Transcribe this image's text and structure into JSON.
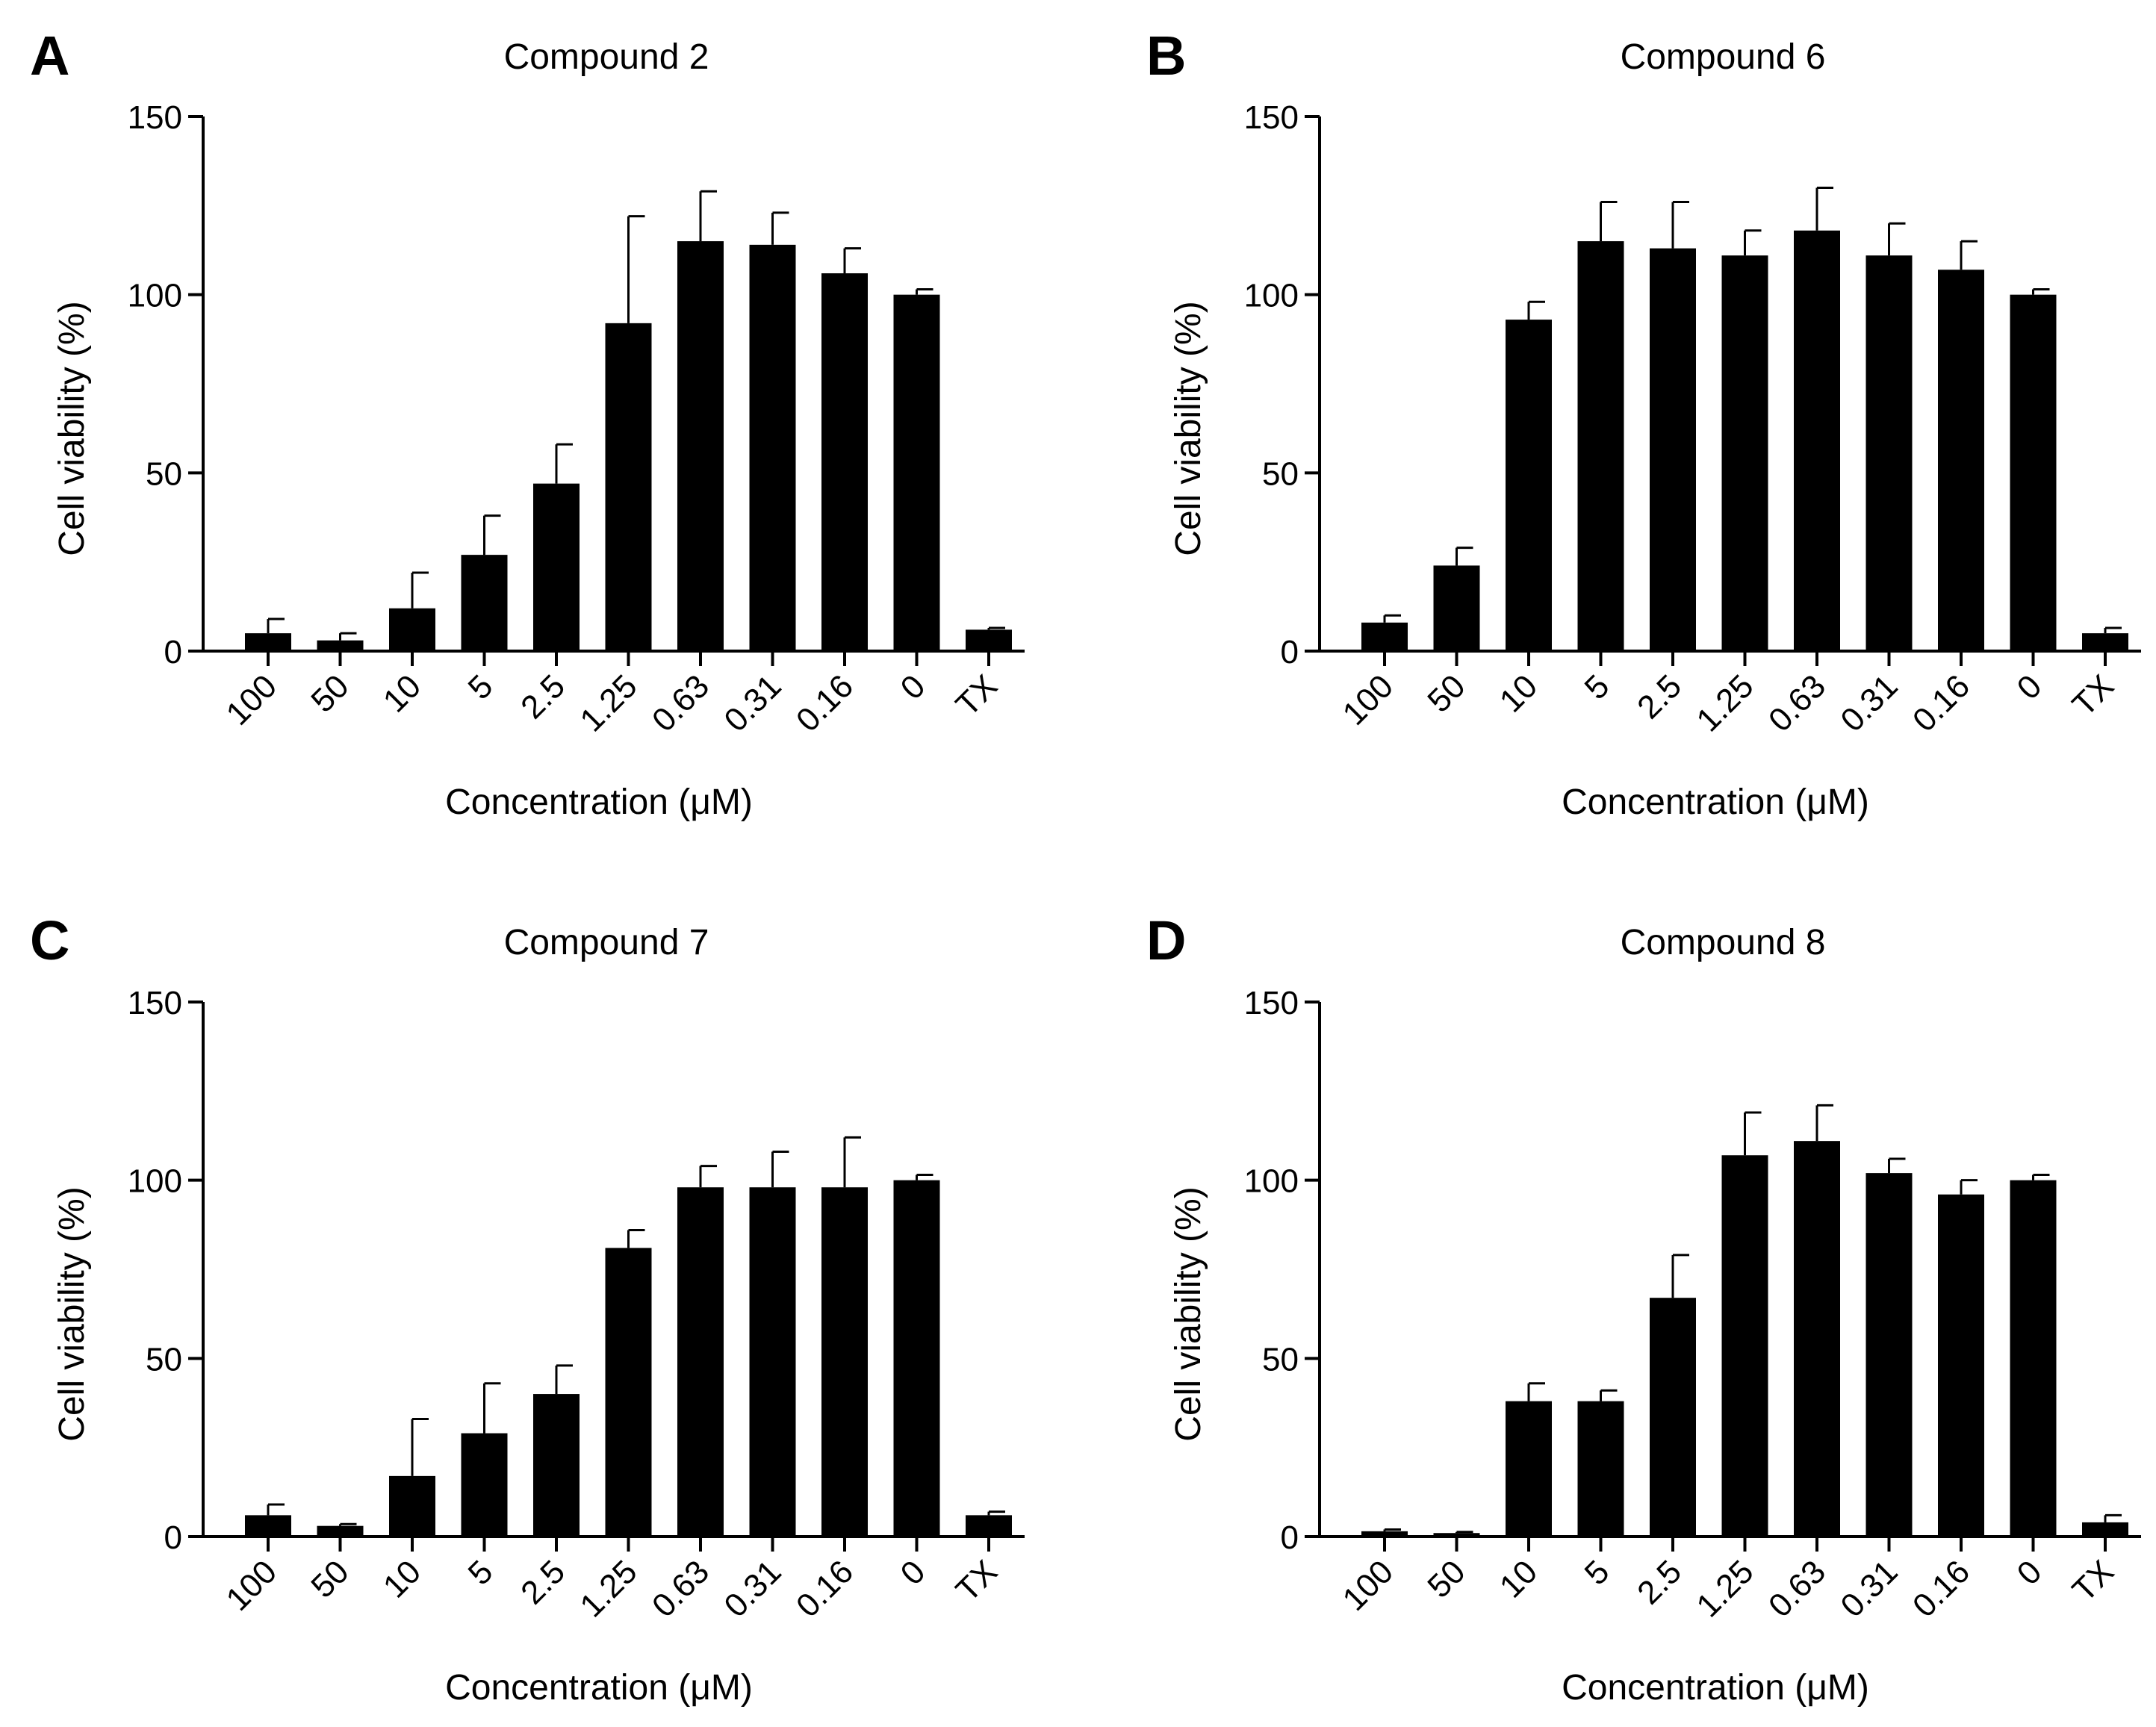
{
  "figure": {
    "bar_color": "#000000",
    "axis_color": "#000000",
    "background": "#ffffff"
  },
  "chart_data": [
    {
      "panel": "A",
      "type": "bar",
      "title": "Compound 2",
      "xlabel": "Concentration (μM)",
      "ylabel": "Cell viability (%)",
      "ylim": [
        0,
        150
      ],
      "yticks": [
        0,
        50,
        100,
        150
      ],
      "grid": false,
      "categories": [
        "100",
        "50",
        "10",
        "5",
        "2.5",
        "1.25",
        "0.63",
        "0.31",
        "0.16",
        "0",
        "TX"
      ],
      "values": [
        5,
        3,
        12,
        27,
        47,
        92,
        115,
        114,
        106,
        100,
        6
      ],
      "errors": [
        4,
        2,
        10,
        11,
        11,
        30,
        14,
        9,
        7,
        1.5,
        0.5
      ]
    },
    {
      "panel": "B",
      "type": "bar",
      "title": "Compound 6",
      "xlabel": "Concentration (μM)",
      "ylabel": "Cell viability (%)",
      "ylim": [
        0,
        150
      ],
      "yticks": [
        0,
        50,
        100,
        150
      ],
      "grid": false,
      "categories": [
        "100",
        "50",
        "10",
        "5",
        "2.5",
        "1.25",
        "0.63",
        "0.31",
        "0.16",
        "0",
        "TX"
      ],
      "values": [
        8,
        24,
        93,
        115,
        113,
        111,
        118,
        111,
        107,
        100,
        5
      ],
      "errors": [
        2,
        5,
        5,
        11,
        13,
        7,
        12,
        9,
        8,
        1.5,
        1.5
      ]
    },
    {
      "panel": "C",
      "type": "bar",
      "title": "Compound 7",
      "xlabel": "Concentration (μM)",
      "ylabel": "Cell viability (%)",
      "ylim": [
        0,
        150
      ],
      "yticks": [
        0,
        50,
        100,
        150
      ],
      "grid": false,
      "categories": [
        "100",
        "50",
        "10",
        "5",
        "2.5",
        "1.25",
        "0.63",
        "0.31",
        "0.16",
        "0",
        "TX"
      ],
      "values": [
        6,
        3,
        17,
        29,
        40,
        81,
        98,
        98,
        98,
        100,
        6
      ],
      "errors": [
        3,
        0.5,
        16,
        14,
        8,
        5,
        6,
        10,
        14,
        1.5,
        1
      ]
    },
    {
      "panel": "D",
      "type": "bar",
      "title": "Compound 8",
      "xlabel": "Concentration (μM)",
      "ylabel": "Cell viability (%)",
      "ylim": [
        0,
        150
      ],
      "yticks": [
        0,
        50,
        100,
        150
      ],
      "grid": false,
      "categories": [
        "100",
        "50",
        "10",
        "5",
        "2.5",
        "1.25",
        "0.63",
        "0.31",
        "0.16",
        "0",
        "TX"
      ],
      "values": [
        1.5,
        1,
        38,
        38,
        67,
        107,
        111,
        102,
        96,
        100,
        4
      ],
      "errors": [
        0.5,
        0.3,
        5,
        3,
        12,
        12,
        10,
        4,
        4,
        1.5,
        2
      ]
    }
  ]
}
